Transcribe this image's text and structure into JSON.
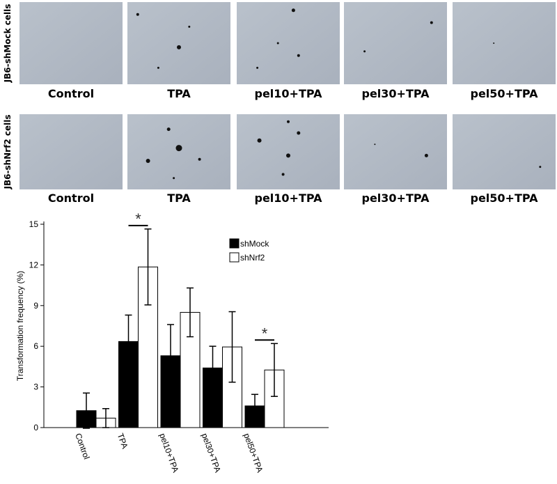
{
  "panels": {
    "rows": [
      {
        "label": "JB6-shMock cells",
        "images": [
          "Control",
          "TPA",
          "pel10+TPA",
          "pel30+TPA",
          "pel50+TPA"
        ]
      },
      {
        "label": "JB6-shNrf2 cells",
        "images": [
          "Control",
          "TPA",
          "pel10+TPA",
          "pel30+TPA",
          "pel50+TPA"
        ]
      }
    ]
  },
  "chart_data": {
    "type": "bar",
    "ylabel": "Transformation frequency (%)",
    "categories": [
      "Control",
      "TPA",
      "pel10+TPA",
      "pel30+TPA",
      "pel50+TPA"
    ],
    "series": [
      {
        "name": "shMock",
        "color": "#000000",
        "values": [
          1.25,
          6.35,
          5.3,
          4.4,
          1.6
        ],
        "errors": [
          1.3,
          1.95,
          2.3,
          1.6,
          0.85
        ]
      },
      {
        "name": "shNrf2",
        "color": "#ffffff",
        "values": [
          0.7,
          11.85,
          8.5,
          5.95,
          4.25
        ],
        "errors": [
          0.7,
          2.8,
          1.8,
          2.6,
          1.95
        ]
      }
    ],
    "significance": [
      null,
      "*",
      null,
      null,
      "*"
    ],
    "ylim": [
      0,
      15
    ],
    "yticks": [
      0,
      3,
      6,
      9,
      12,
      15
    ]
  }
}
